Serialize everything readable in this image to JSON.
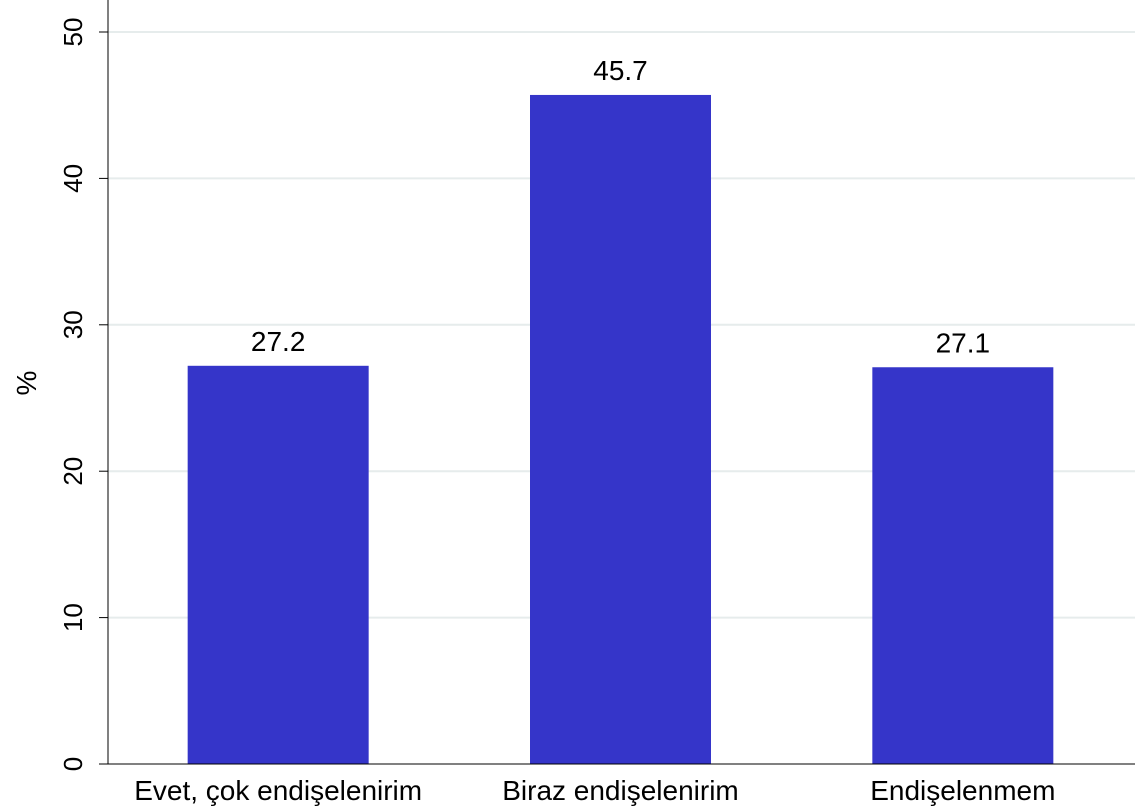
{
  "chart_data": {
    "type": "bar",
    "title": "",
    "xlabel": "",
    "ylabel": "%",
    "ylim": [
      0,
      50
    ],
    "yticks": [
      0,
      10,
      20,
      30,
      40,
      50
    ],
    "grid": true,
    "categories": [
      "Evet, çok endişelenirim",
      "Biraz endişelenirim",
      "Endişelenmem"
    ],
    "values": [
      27.2,
      45.7,
      27.1
    ],
    "data_labels": [
      "27.2",
      "45.7",
      "27.1"
    ],
    "colors": {
      "bar": "#3535C9",
      "grid": "#E6ECEC",
      "axis": "#000000"
    }
  }
}
